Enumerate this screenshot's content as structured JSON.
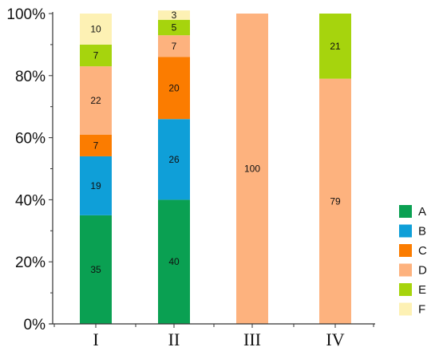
{
  "chart_data": {
    "type": "bar",
    "stacked": true,
    "categories": [
      "I",
      "II",
      "III",
      "IV"
    ],
    "series": [
      {
        "name": "A",
        "color": "#0aa052",
        "values": [
          35,
          40,
          0,
          0
        ]
      },
      {
        "name": "B",
        "color": "#0f9fd8",
        "values": [
          19,
          26,
          0,
          0
        ]
      },
      {
        "name": "C",
        "color": "#fb7c00",
        "values": [
          7,
          20,
          0,
          0
        ]
      },
      {
        "name": "D",
        "color": "#fdb27e",
        "values": [
          22,
          7,
          100,
          79
        ]
      },
      {
        "name": "E",
        "color": "#a6d40d",
        "values": [
          7,
          5,
          0,
          21
        ]
      },
      {
        "name": "F",
        "color": "#fdf1b4",
        "values": [
          10,
          3,
          0,
          0
        ]
      }
    ],
    "yticks": [
      "0%",
      "20%",
      "40%",
      "60%",
      "80%",
      "100%"
    ],
    "ylim": [
      0,
      100
    ],
    "legend_position": "right",
    "title": "",
    "xlabel": "",
    "ylabel": ""
  }
}
